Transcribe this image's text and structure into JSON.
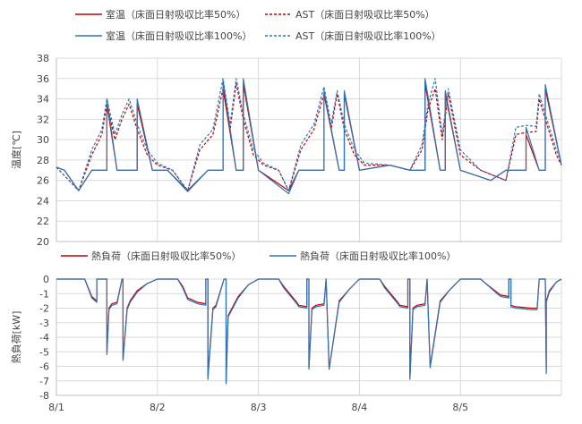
{
  "chart_data": [
    {
      "type": "line",
      "ylabel": "温度[℃]",
      "ylim": [
        20,
        38
      ],
      "yticks": [
        20,
        22,
        24,
        26,
        28,
        30,
        32,
        34,
        36,
        38
      ],
      "xlim": [
        0,
        5
      ],
      "grid": true,
      "legend_position": "top",
      "series": [
        {
          "name": "室温（床面日射吸収比率50%）",
          "color": "#c00000",
          "style": "solid",
          "x": [
            0,
            0.08,
            0.22,
            0.35,
            0.4,
            0.5,
            0.5,
            0.6,
            0.72,
            0.8,
            0.8,
            0.95,
            1.1,
            1.3,
            1.5,
            1.6,
            1.65,
            1.65,
            1.78,
            1.85,
            1.85,
            2,
            2.3,
            2.4,
            2.5,
            2.65,
            2.65,
            2.8,
            2.85,
            2.85,
            3,
            3.3,
            3.5,
            3.6,
            3.65,
            3.65,
            3.8,
            3.85,
            3.85,
            4,
            4.3,
            4.45,
            4.6,
            4.65,
            4.65,
            4.78,
            4.84,
            4.84,
            5
          ],
          "y": [
            27.3,
            27,
            25,
            27,
            27,
            27,
            33.5,
            27,
            27,
            27,
            33.5,
            27,
            27,
            25,
            27,
            27,
            27,
            35,
            27,
            27,
            35.5,
            27,
            25,
            27,
            27,
            27,
            34.5,
            27,
            27,
            34.5,
            27,
            27.5,
            27,
            27,
            27,
            35.5,
            27,
            27,
            34.5,
            27,
            26,
            27,
            27,
            27,
            30.5,
            27,
            27,
            35,
            27.5
          ]
        },
        {
          "name": "AST（床面日射吸収比率50%）",
          "color": "#c00000",
          "style": "dashed",
          "x": [
            0,
            0.22,
            0.35,
            0.45,
            0.5,
            0.58,
            0.65,
            0.72,
            0.8,
            0.9,
            1,
            1.15,
            1.3,
            1.42,
            1.55,
            1.65,
            1.72,
            1.78,
            1.85,
            1.95,
            2.05,
            2.2,
            2.3,
            2.42,
            2.55,
            2.65,
            2.72,
            2.78,
            2.85,
            2.95,
            3.05,
            3.3,
            3.5,
            3.62,
            3.68,
            3.75,
            3.82,
            3.88,
            4,
            4.2,
            4.45,
            4.55,
            4.65,
            4.75,
            4.78,
            4.84,
            4.95,
            5
          ],
          "y": [
            27.3,
            25,
            28.5,
            30.5,
            33.5,
            30,
            32,
            33.5,
            31,
            28.5,
            27.5,
            27,
            25,
            29,
            30.5,
            35,
            31,
            35.5,
            32,
            28.5,
            27.5,
            27,
            25,
            29,
            31,
            34.5,
            31,
            34.5,
            31,
            28.5,
            27.5,
            27.5,
            27,
            29,
            33,
            35,
            30,
            34.5,
            28.5,
            27,
            26,
            30.5,
            30.7,
            30.8,
            34,
            32,
            28.5,
            27.5
          ]
        },
        {
          "name": "室温（床面日射吸収比率100%）",
          "color": "#2e75b6",
          "style": "solid",
          "x": [
            0,
            0.08,
            0.22,
            0.35,
            0.4,
            0.5,
            0.5,
            0.6,
            0.72,
            0.8,
            0.8,
            0.95,
            1.1,
            1.3,
            1.5,
            1.6,
            1.65,
            1.65,
            1.78,
            1.85,
            1.85,
            2,
            2.3,
            2.4,
            2.5,
            2.65,
            2.65,
            2.8,
            2.85,
            2.85,
            3,
            3.3,
            3.5,
            3.6,
            3.65,
            3.65,
            3.8,
            3.85,
            3.85,
            4,
            4.3,
            4.45,
            4.6,
            4.65,
            4.65,
            4.78,
            4.84,
            4.84,
            5
          ],
          "y": [
            27.3,
            27,
            25,
            27,
            27,
            27,
            34,
            27,
            27,
            27,
            34,
            27,
            27,
            24.9,
            27,
            27,
            27,
            35.8,
            27,
            27,
            36,
            27,
            24.7,
            27,
            27,
            27,
            34.8,
            27,
            27,
            34.8,
            27,
            27.5,
            27,
            27,
            27,
            36,
            27,
            27,
            34.8,
            27,
            26,
            27,
            27,
            27,
            31.2,
            27,
            27,
            35.4,
            27.5
          ]
        },
        {
          "name": "AST（床面日射吸収比率100%）",
          "color": "#2e75b6",
          "style": "dashed",
          "x": [
            0,
            0.22,
            0.35,
            0.45,
            0.5,
            0.58,
            0.65,
            0.72,
            0.8,
            0.9,
            1,
            1.15,
            1.3,
            1.42,
            1.55,
            1.65,
            1.72,
            1.78,
            1.85,
            1.95,
            2.05,
            2.2,
            2.3,
            2.42,
            2.55,
            2.65,
            2.72,
            2.78,
            2.85,
            2.95,
            3.05,
            3.3,
            3.5,
            3.62,
            3.68,
            3.75,
            3.82,
            3.88,
            4,
            4.2,
            4.45,
            4.55,
            4.65,
            4.75,
            4.78,
            4.84,
            4.95,
            5
          ],
          "y": [
            27.3,
            25,
            29,
            31,
            34,
            30.5,
            32.5,
            34,
            31.5,
            29,
            27.7,
            27,
            25,
            29.5,
            31,
            36,
            31.5,
            36,
            32.5,
            29,
            27.7,
            27,
            25,
            29.5,
            31.5,
            35.2,
            31.5,
            34.8,
            31.5,
            29,
            27.7,
            27.5,
            27,
            29.5,
            33.5,
            36,
            30.5,
            35,
            29,
            27,
            26,
            31.2,
            31.4,
            31.3,
            34.5,
            32.5,
            29,
            27.7
          ]
        }
      ]
    },
    {
      "type": "line",
      "ylabel": "熱負荷[kW]",
      "ylim": [
        -8,
        0
      ],
      "yticks": [
        -8,
        -7,
        -6,
        -5,
        -4,
        -3,
        -2,
        -1,
        0
      ],
      "xlim": [
        0,
        5
      ],
      "xticks": [
        0,
        1,
        2,
        3,
        4,
        5
      ],
      "xticklabels": [
        "8/1",
        "8/2",
        "8/3",
        "8/4",
        "8/5",
        ""
      ],
      "grid": true,
      "legend_position": "top",
      "series": [
        {
          "name": "熱負荷（床面日射吸収比率50%）",
          "color": "#c00000",
          "style": "solid",
          "x": [
            0,
            0.28,
            0.35,
            0.4,
            0.4,
            0.48,
            0.5,
            0.5,
            0.52,
            0.55,
            0.6,
            0.65,
            0.66,
            0.66,
            0.7,
            0.73,
            0.8,
            0.9,
            1,
            1.2,
            1.25,
            1.3,
            1.4,
            1.48,
            1.48,
            1.5,
            1.5,
            1.55,
            1.58,
            1.66,
            1.68,
            1.68,
            1.7,
            1.8,
            1.9,
            2,
            2.2,
            2.25,
            2.38,
            2.4,
            2.48,
            2.48,
            2.5,
            2.5,
            2.53,
            2.57,
            2.65,
            2.67,
            2.67,
            2.7,
            2.8,
            2.9,
            3,
            3.2,
            3.25,
            3.38,
            3.4,
            3.48,
            3.48,
            3.5,
            3.5,
            3.53,
            3.57,
            3.65,
            3.67,
            3.67,
            3.7,
            3.8,
            3.9,
            4,
            4.2,
            4.25,
            4.38,
            4.4,
            4.48,
            4.48,
            4.5,
            4.5,
            4.55,
            4.7,
            4.74,
            4.76,
            4.78,
            4.8,
            4.8,
            4.84,
            4.85,
            4.85,
            4.88,
            4.95,
            5
          ],
          "y": [
            0,
            0,
            -1.2,
            -1.5,
            0,
            0,
            0,
            -5,
            -2,
            -1.7,
            -1.6,
            0,
            0,
            -5.5,
            -2,
            -1.5,
            -0.8,
            -0.3,
            0,
            0,
            -0.5,
            -1.3,
            -1.6,
            -1.7,
            0,
            0,
            -6.7,
            -2,
            -1.8,
            0,
            0,
            -7.1,
            -2.5,
            -1.2,
            -0.4,
            0,
            0,
            -0.5,
            -1.6,
            -1.8,
            -1.9,
            0,
            0,
            -6.1,
            -2,
            -1.8,
            -1.7,
            0,
            0,
            -6.2,
            -1.5,
            -0.7,
            0,
            0,
            -0.5,
            -1.6,
            -1.8,
            -1.9,
            0,
            0,
            -6.8,
            -2,
            -1.8,
            -1.7,
            0,
            0,
            -6,
            -1.5,
            -0.7,
            0,
            0,
            -0.3,
            -1,
            -1.1,
            -1.2,
            0,
            0,
            -1.8,
            -1.9,
            -2,
            -2,
            -2,
            0,
            0,
            0,
            0,
            -6.3,
            -1.5,
            -0.8,
            -0.2,
            0
          ]
        },
        {
          "name": "熱負荷（床面日射吸収比率100%）",
          "color": "#2e75b6",
          "style": "solid",
          "x": [
            0,
            0.28,
            0.35,
            0.4,
            0.4,
            0.48,
            0.5,
            0.5,
            0.52,
            0.55,
            0.6,
            0.65,
            0.66,
            0.66,
            0.7,
            0.73,
            0.8,
            0.9,
            1,
            1.2,
            1.25,
            1.3,
            1.4,
            1.48,
            1.48,
            1.5,
            1.5,
            1.55,
            1.58,
            1.66,
            1.68,
            1.68,
            1.7,
            1.8,
            1.9,
            2,
            2.2,
            2.25,
            2.38,
            2.4,
            2.48,
            2.48,
            2.5,
            2.5,
            2.53,
            2.57,
            2.65,
            2.67,
            2.67,
            2.7,
            2.8,
            2.9,
            3,
            3.2,
            3.25,
            3.38,
            3.4,
            3.48,
            3.48,
            3.5,
            3.5,
            3.53,
            3.57,
            3.65,
            3.67,
            3.67,
            3.7,
            3.8,
            3.9,
            4,
            4.2,
            4.25,
            4.38,
            4.4,
            4.48,
            4.48,
            4.5,
            4.5,
            4.55,
            4.7,
            4.74,
            4.76,
            4.78,
            4.8,
            4.8,
            4.84,
            4.85,
            4.85,
            4.88,
            4.95,
            5
          ],
          "y": [
            0,
            0,
            -1.3,
            -1.6,
            0,
            0,
            0,
            -5.2,
            -2.1,
            -1.8,
            -1.7,
            0,
            0,
            -5.6,
            -2.1,
            -1.6,
            -0.9,
            -0.3,
            0,
            0,
            -0.6,
            -1.4,
            -1.7,
            -1.8,
            0,
            0,
            -6.9,
            -2.1,
            -1.9,
            0,
            0,
            -7.2,
            -2.6,
            -1.3,
            -0.4,
            0,
            0,
            -0.6,
            -1.7,
            -1.9,
            -2,
            0,
            0,
            -6.2,
            -2.1,
            -1.9,
            -1.8,
            0,
            0,
            -6.2,
            -1.6,
            -0.7,
            0,
            0,
            -0.6,
            -1.7,
            -1.9,
            -2,
            0,
            0,
            -6.9,
            -2.1,
            -1.9,
            -1.8,
            0,
            0,
            -6.1,
            -1.6,
            -0.7,
            0,
            0,
            -0.3,
            -1.1,
            -1.2,
            -1.3,
            0,
            0,
            -1.9,
            -2,
            -2.1,
            -2.1,
            -2.1,
            0,
            0,
            0,
            0,
            -6.5,
            -1.6,
            -0.9,
            -0.2,
            0
          ]
        }
      ]
    }
  ]
}
